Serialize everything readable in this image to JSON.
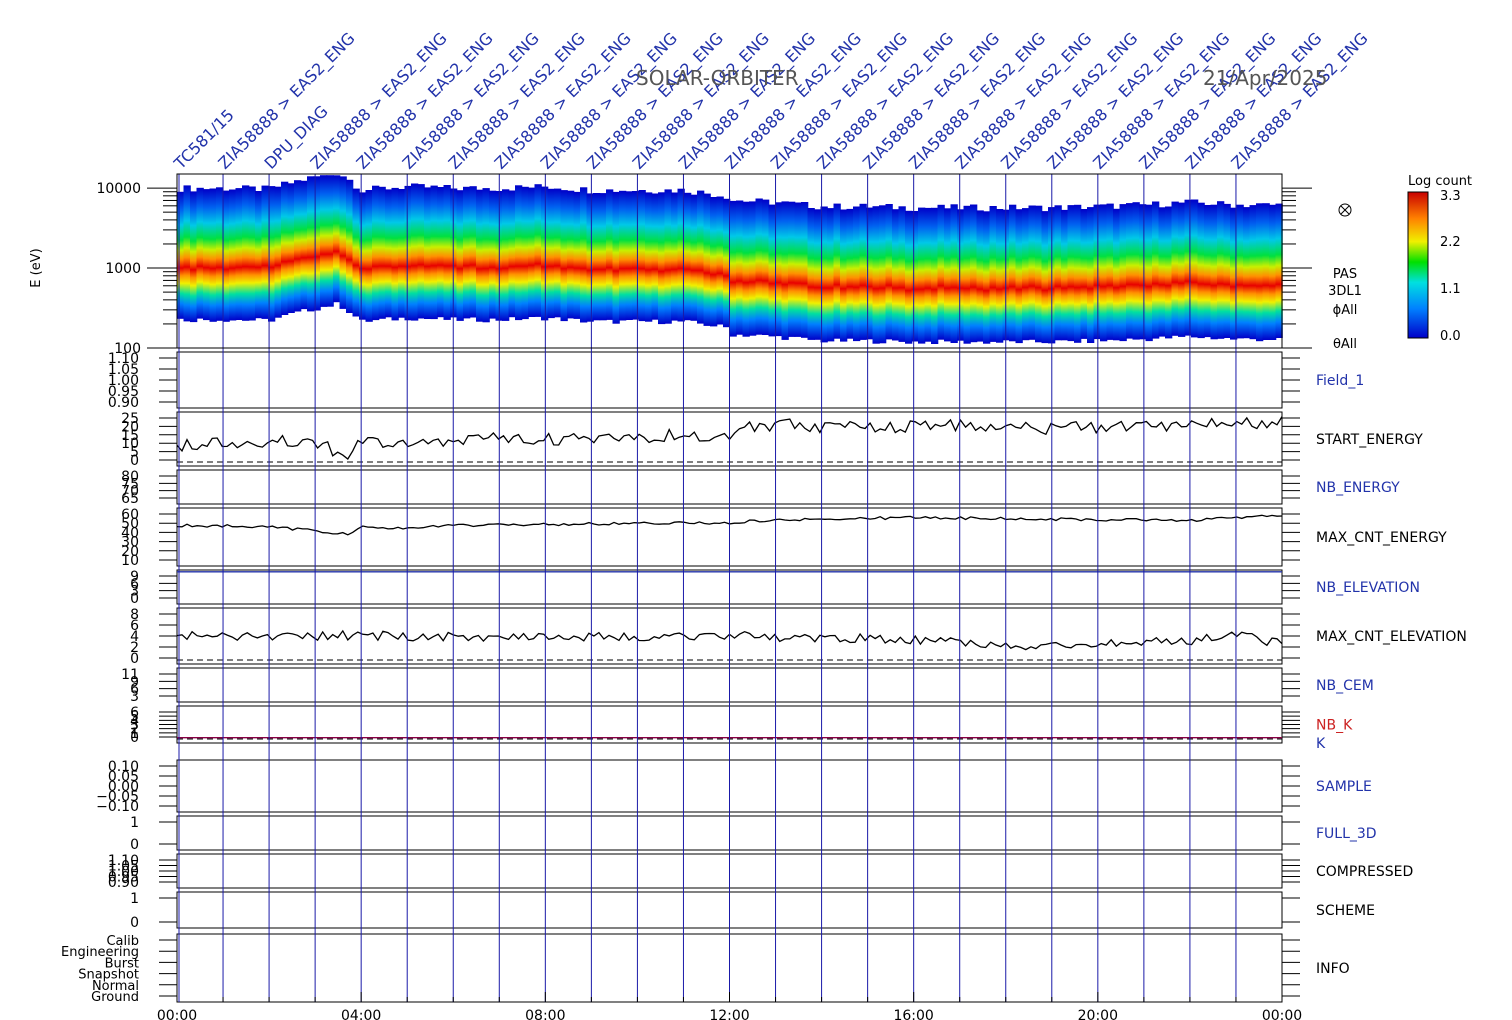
{
  "header": {
    "mission": "SOLAR-ORBITER",
    "date": "21/Apr/2025"
  },
  "colorbar": {
    "label": "Log count",
    "ticks": [
      "3.3",
      "2.2",
      "1.1",
      "0.0"
    ]
  },
  "spectrogram": {
    "ylabel": "E (eV)",
    "yticks": [
      "10000",
      "1000",
      "100"
    ],
    "side_labels": [
      "PAS",
      "3DL1",
      "ϕAll",
      "θAll"
    ]
  },
  "colors": {
    "frame": "#000000",
    "marker_lines": "#1a1aa8",
    "blue_labels": "#2233aa",
    "nb_k": "#cc2222",
    "k_line": "#880044"
  },
  "chart_data": [
    {
      "type": "heatmap",
      "panel": "PAS 3DL1",
      "ylabel": "E (eV)",
      "yscale": "log",
      "ylim": [
        100,
        15000
      ],
      "xlim": [
        0,
        24
      ],
      "zlabel": "Log count",
      "zlim": [
        0.0,
        3.3
      ],
      "peak_energy_eV": [
        [
          0,
          950
        ],
        [
          1,
          950
        ],
        [
          2,
          930
        ],
        [
          3.5,
          1500
        ],
        [
          4,
          900
        ],
        [
          5,
          1000
        ],
        [
          6,
          950
        ],
        [
          7,
          950
        ],
        [
          8,
          1000
        ],
        [
          9,
          900
        ],
        [
          10,
          900
        ],
        [
          11,
          900
        ],
        [
          12,
          750
        ],
        [
          13,
          700
        ],
        [
          14,
          620
        ],
        [
          15,
          620
        ],
        [
          16,
          600
        ],
        [
          17,
          600
        ],
        [
          18,
          600
        ],
        [
          19,
          600
        ],
        [
          20,
          620
        ],
        [
          21,
          650
        ],
        [
          22,
          700
        ],
        [
          23,
          650
        ],
        [
          24,
          650
        ]
      ]
    },
    {
      "type": "line",
      "panels": [
        {
          "name": "Field_1",
          "yticks": [
            "1.10",
            "1.05",
            "1.00",
            "0.95",
            "0.90"
          ]
        },
        {
          "name": "START_ENERGY",
          "yticks": [
            "25",
            "20",
            "15",
            "10",
            "5",
            "0"
          ]
        },
        {
          "name": "NB_ENERGY",
          "yticks": [
            "80",
            "75",
            "70",
            "65"
          ]
        },
        {
          "name": "MAX_CNT_ENERGY",
          "yticks": [
            "60",
            "50",
            "40",
            "30",
            "20",
            "10"
          ]
        },
        {
          "name": "NB_ELEVATION",
          "yticks": [
            "9",
            "6",
            "3",
            "0"
          ]
        },
        {
          "name": "MAX_CNT_ELEVATION",
          "yticks": [
            "8",
            "6",
            "4",
            "2",
            "0"
          ]
        },
        {
          "name": "NB_CEM",
          "yticks": [
            "11",
            "9",
            "6",
            "3"
          ]
        },
        {
          "name": "NB_K",
          "yticks": [
            "6",
            "5",
            "4",
            "3",
            "2",
            "1",
            "0"
          ]
        },
        {
          "name": "K",
          "yticks": []
        },
        {
          "name": "SAMPLE",
          "yticks": [
            "0.10",
            "0.05",
            "0.00",
            "−0.05",
            "−0.10"
          ]
        },
        {
          "name": "FULL_3D",
          "yticks": [
            "1",
            "0"
          ]
        },
        {
          "name": "COMPRESSED",
          "yticks": [
            "1.10",
            "1.05",
            "1.00",
            "0.95",
            "0.90"
          ]
        },
        {
          "name": "SCHEME",
          "yticks": [
            "1",
            "0"
          ]
        },
        {
          "name": "INFO",
          "yticks": [
            "Calib",
            "Engineering",
            "Burst",
            "Snapshot",
            "Normal",
            "Ground"
          ]
        }
      ],
      "xticks": [
        "00:00",
        "04:00",
        "08:00",
        "12:00",
        "16:00",
        "20:00",
        "00:00"
      ],
      "xlim": [
        0,
        24
      ],
      "start_energy": [
        [
          0,
          10
        ],
        [
          1,
          11
        ],
        [
          2,
          12
        ],
        [
          3,
          11
        ],
        [
          3.7,
          5
        ],
        [
          4,
          11
        ],
        [
          5,
          10
        ],
        [
          6,
          12
        ],
        [
          7,
          14
        ],
        [
          8,
          13
        ],
        [
          9,
          13
        ],
        [
          10,
          14
        ],
        [
          11,
          15
        ],
        [
          12,
          15
        ],
        [
          12.3,
          18
        ],
        [
          13,
          20
        ],
        [
          14,
          19
        ],
        [
          15,
          19
        ],
        [
          16,
          19
        ],
        [
          17,
          20
        ],
        [
          18,
          19
        ],
        [
          19,
          18
        ],
        [
          20,
          19
        ],
        [
          21,
          19
        ],
        [
          22,
          20
        ],
        [
          23,
          20
        ],
        [
          24,
          21
        ]
      ],
      "max_cnt_energy": [
        [
          0,
          47
        ],
        [
          2,
          46
        ],
        [
          3.7,
          38
        ],
        [
          4,
          46
        ],
        [
          5,
          44
        ],
        [
          6,
          47
        ],
        [
          8,
          48
        ],
        [
          10,
          49
        ],
        [
          12,
          50
        ],
        [
          13,
          53
        ],
        [
          16,
          55
        ],
        [
          18,
          54
        ],
        [
          20,
          53
        ],
        [
          22,
          52
        ],
        [
          23,
          55
        ],
        [
          24,
          57
        ]
      ],
      "max_cnt_elevation": [
        [
          0,
          4.5
        ],
        [
          2,
          4.5
        ],
        [
          4,
          4.6
        ],
        [
          6,
          4.3
        ],
        [
          8,
          4.6
        ],
        [
          10,
          4.2
        ],
        [
          12,
          4.5
        ],
        [
          14,
          4.2
        ],
        [
          16,
          4.0
        ],
        [
          17,
          3.5
        ],
        [
          18,
          2.8
        ],
        [
          20,
          3.3
        ],
        [
          22,
          3.7
        ],
        [
          23,
          4.8
        ],
        [
          24,
          3.2
        ]
      ],
      "nb_elevation": [
        [
          0,
          9
        ],
        [
          24,
          9
        ]
      ],
      "nb_k": [
        [
          0,
          1
        ],
        [
          24,
          1
        ]
      ]
    }
  ],
  "event_labels": [
    "TC581/15",
    "ZIA58888 > EAS2_ENG",
    "DPU_DIAG",
    "ZIA58888 > EAS2_ENG",
    "ZIA58888 > EAS2_ENG",
    "ZIA58888 > EAS2_ENG",
    "ZIA58888 > EAS2_ENG",
    "ZIA58888 > EAS2_ENG",
    "ZIA58888 > EAS2_ENG",
    "ZIA58888 > EAS2_ENG",
    "ZIA58888 > EAS2_ENG",
    "ZIA58888 > EAS2_ENG",
    "ZIA58888 > EAS2_ENG",
    "ZIA58888 > EAS2_ENG",
    "ZIA58888 > EAS2_ENG",
    "ZIA58888 > EAS2_ENG",
    "ZIA58888 > EAS2_ENG",
    "ZIA58888 > EAS2_ENG",
    "ZIA58888 > EAS2_ENG",
    "ZIA58888 > EAS2_ENG",
    "ZIA58888 > EAS2_ENG",
    "ZIA58888 > EAS2_ENG",
    "ZIA58888 > EAS2_ENG",
    "ZIA58888 > EAS2_ENG"
  ]
}
